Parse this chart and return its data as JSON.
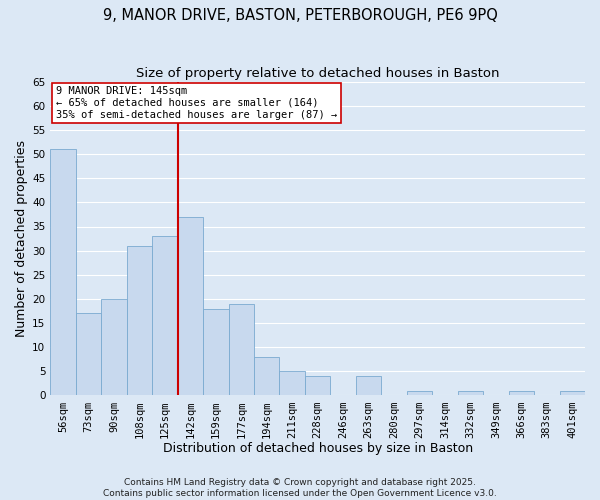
{
  "title1": "9, MANOR DRIVE, BASTON, PETERBOROUGH, PE6 9PQ",
  "title2": "Size of property relative to detached houses in Baston",
  "xlabel": "Distribution of detached houses by size in Baston",
  "ylabel": "Number of detached properties",
  "bin_labels": [
    "56sqm",
    "73sqm",
    "90sqm",
    "108sqm",
    "125sqm",
    "142sqm",
    "159sqm",
    "177sqm",
    "194sqm",
    "211sqm",
    "228sqm",
    "246sqm",
    "263sqm",
    "280sqm",
    "297sqm",
    "314sqm",
    "332sqm",
    "349sqm",
    "366sqm",
    "383sqm",
    "401sqm"
  ],
  "bar_heights": [
    51,
    17,
    20,
    31,
    33,
    37,
    18,
    19,
    8,
    5,
    4,
    0,
    4,
    0,
    1,
    0,
    1,
    0,
    1,
    0,
    1
  ],
  "bar_color": "#c8d9ee",
  "bar_edgecolor": "#7aaad0",
  "vline_index": 5,
  "vline_color": "#cc0000",
  "annotation_title": "9 MANOR DRIVE: 145sqm",
  "annotation_line1": "← 65% of detached houses are smaller (164)",
  "annotation_line2": "35% of semi-detached houses are larger (87) →",
  "annotation_box_edgecolor": "#cc0000",
  "ylim": [
    0,
    65
  ],
  "yticks": [
    0,
    5,
    10,
    15,
    20,
    25,
    30,
    35,
    40,
    45,
    50,
    55,
    60,
    65
  ],
  "footnote1": "Contains HM Land Registry data © Crown copyright and database right 2025.",
  "footnote2": "Contains public sector information licensed under the Open Government Licence v3.0.",
  "background_color": "#dce8f5",
  "plot_background": "#dce8f5",
  "grid_color": "#ffffff",
  "title_fontsize": 10.5,
  "subtitle_fontsize": 9.5,
  "axis_label_fontsize": 9,
  "tick_fontsize": 7.5,
  "annotation_fontsize": 7.5,
  "footnote_fontsize": 6.5
}
